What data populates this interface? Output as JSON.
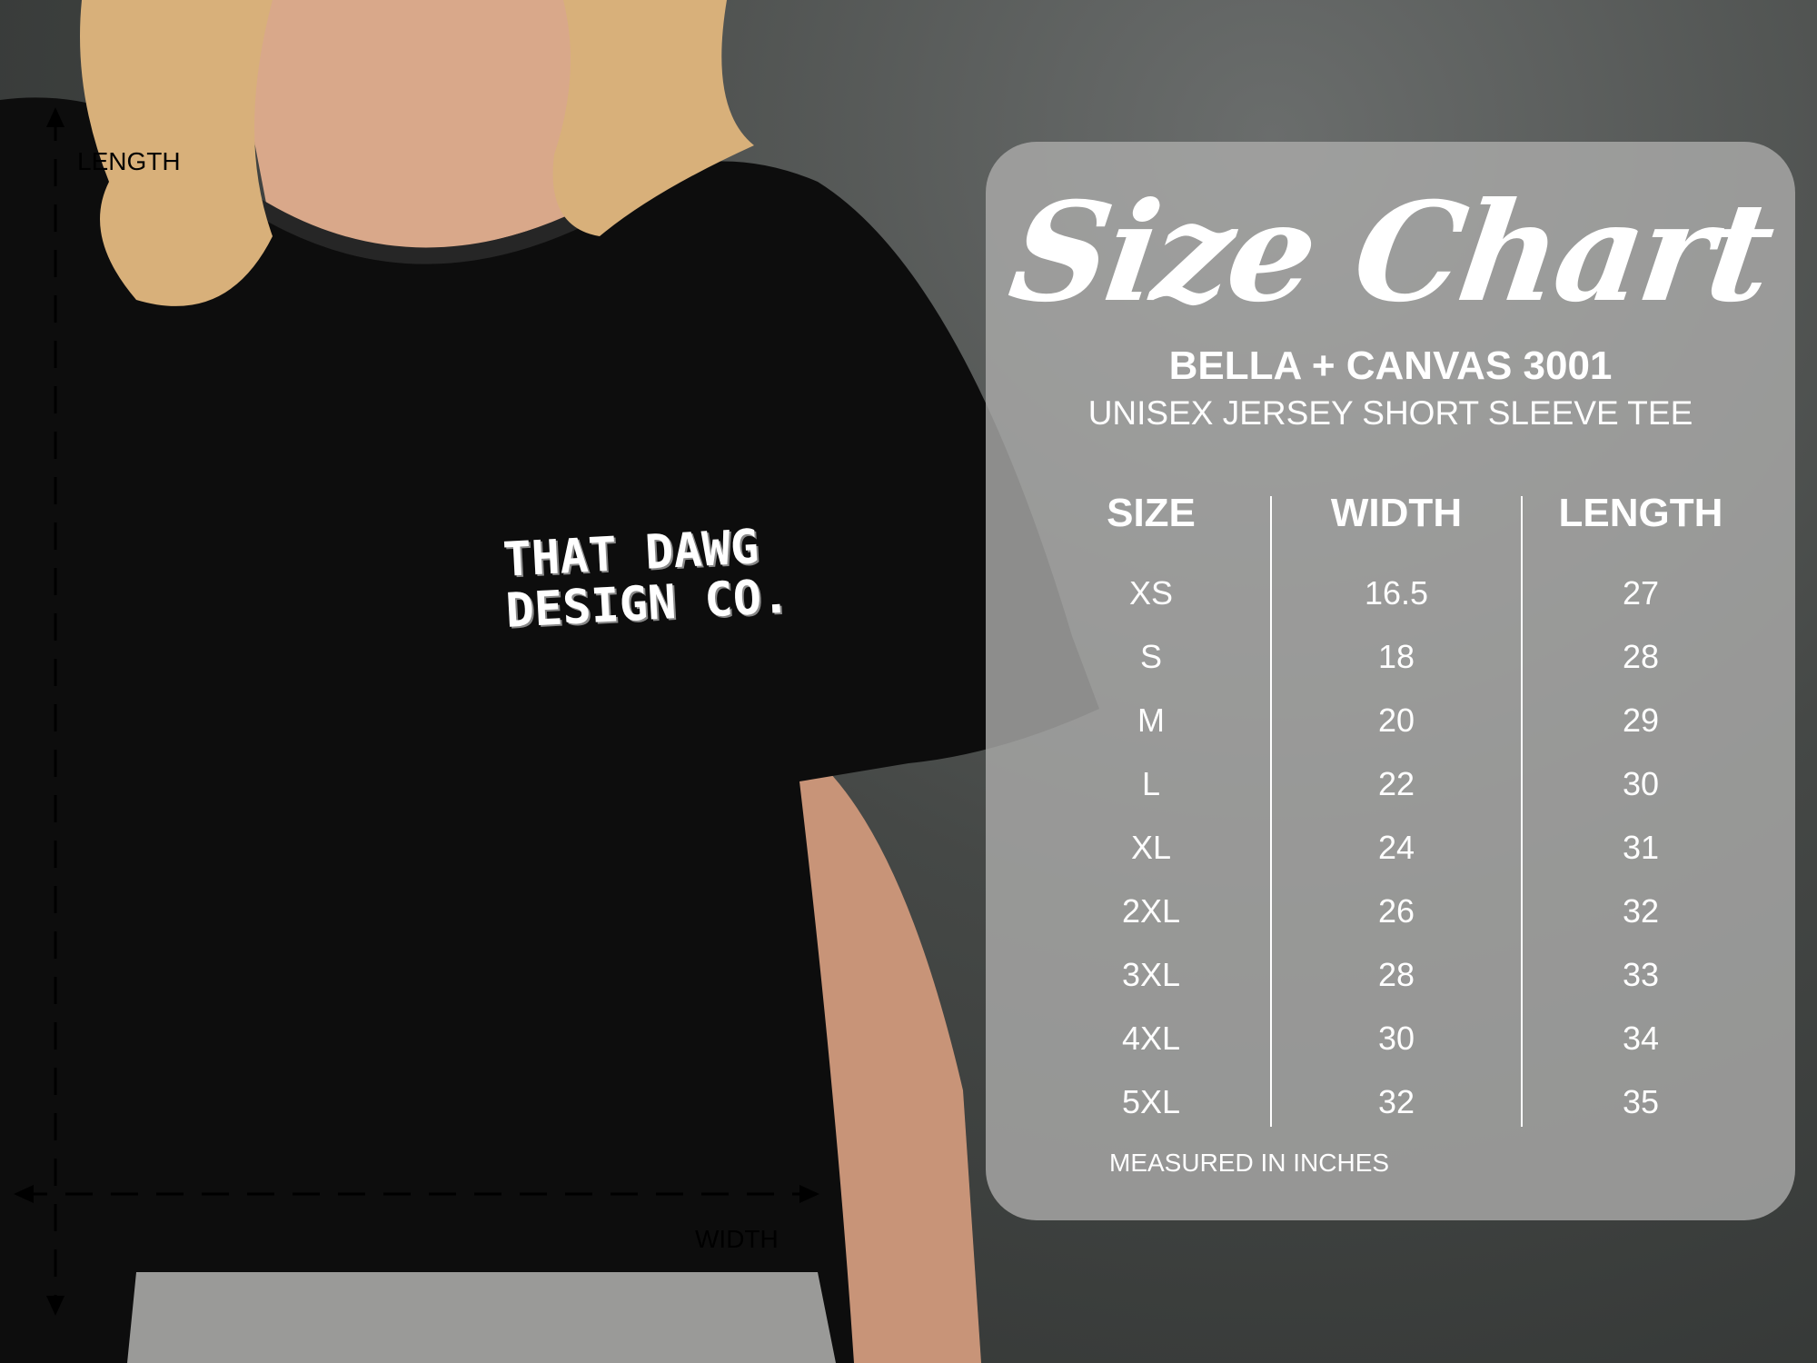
{
  "title": "Size Chart",
  "product": "BELLA + CANVAS 3001",
  "product_description": "UNISEX JERSEY SHORT SLEEVE TEE",
  "table": {
    "headers": [
      "SIZE",
      "WIDTH",
      "LENGTH"
    ],
    "rows": [
      [
        "XS",
        "16.5",
        "27"
      ],
      [
        "S",
        "18",
        "28"
      ],
      [
        "M",
        "20",
        "29"
      ],
      [
        "L",
        "22",
        "30"
      ],
      [
        "XL",
        "24",
        "31"
      ],
      [
        "2XL",
        "26",
        "32"
      ],
      [
        "3XL",
        "28",
        "33"
      ],
      [
        "4XL",
        "30",
        "34"
      ],
      [
        "5XL",
        "32",
        "35"
      ]
    ]
  },
  "footnote": "MEASURED IN INCHES",
  "measure_labels": {
    "length": "LENGTH",
    "width": "WIDTH"
  },
  "shirt_logo": "THAT DAWG DESIGN CO.",
  "colors": {
    "panel": "#a9a9a7",
    "shirt": "#0d0d0d",
    "text": "#ffffff"
  }
}
